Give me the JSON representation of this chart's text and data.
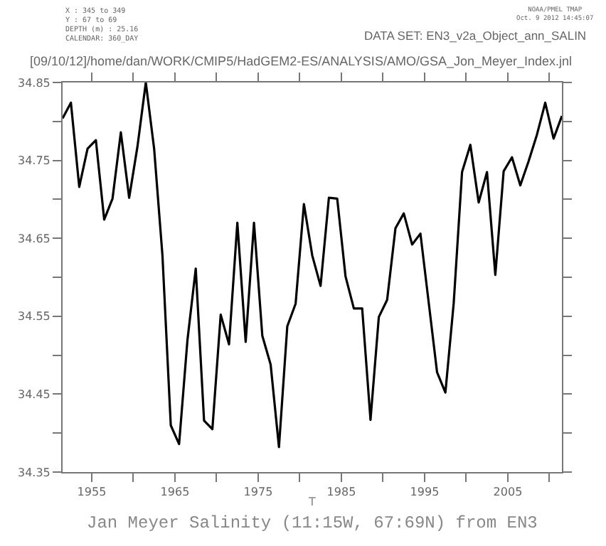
{
  "chart_data": {
    "type": "line",
    "title": "Jan Meyer Salinity (11:15W, 67:69N) from EN3",
    "xlabel": "T",
    "annotations": [
      "X : 345 to 349\nY : 67 to 69\nDEPTH (m) : 25.16\nCALENDAR: 360_DAY",
      "NOAA/PMEL TMAP\nOct. 9 2012 14:45:07",
      "DATA SET: EN3_v2a_Object_ann_SALIN",
      "[09/10/12]/home/dan/WORK/CMIP5/HadGEM2-ES/ANALYSIS/AMO/GSA_Jon_Meyer_Index.jnl"
    ],
    "x": [
      1951.5,
      1952.5,
      1953.5,
      1954.5,
      1955.5,
      1956.5,
      1957.5,
      1958.5,
      1959.5,
      1960.5,
      1961.5,
      1962.5,
      1963.5,
      1964.5,
      1965.5,
      1966.5,
      1967.5,
      1968.5,
      1969.5,
      1970.5,
      1971.5,
      1972.5,
      1973.5,
      1974.5,
      1975.5,
      1976.5,
      1977.5,
      1978.5,
      1979.5,
      1980.5,
      1981.5,
      1982.5,
      1983.5,
      1984.5,
      1985.5,
      1986.5,
      1987.5,
      1988.5,
      1989.5,
      1990.5,
      1991.5,
      1992.5,
      1993.5,
      1994.5,
      1995.5,
      1996.5,
      1997.5,
      1998.5,
      1999.5,
      2000.5,
      2001.5,
      2002.5,
      2003.5,
      2004.5,
      2005.5,
      2006.5,
      2007.5,
      2008.5,
      2009.5,
      2010.5,
      2011.5
    ],
    "series": [
      {
        "color": "#000000",
        "values": [
          34.804,
          34.824,
          34.716,
          34.765,
          34.776,
          34.674,
          34.701,
          34.786,
          34.702,
          34.768,
          34.85,
          34.765,
          34.628,
          34.41,
          34.386,
          34.519,
          34.611,
          34.416,
          34.405,
          34.552,
          34.514,
          34.67,
          34.517,
          34.67,
          34.525,
          34.488,
          34.382,
          34.537,
          34.566,
          34.694,
          34.628,
          34.589,
          34.702,
          34.701,
          34.601,
          34.56,
          34.56,
          34.417,
          34.549,
          34.571,
          34.663,
          34.682,
          34.642,
          34.656,
          34.567,
          34.478,
          34.452,
          34.567,
          34.735,
          34.77,
          34.696,
          34.735,
          34.603,
          34.736,
          34.754,
          34.718,
          34.749,
          34.783,
          34.824,
          34.778,
          34.807
        ]
      }
    ],
    "xlim": [
      1951.5,
      2011.5
    ],
    "xticks": [
      1955,
      {
        "value": 1960,
        "label": null
      },
      1965,
      {
        "value": 1970,
        "label": null
      },
      1975,
      {
        "value": 1980,
        "label": null
      },
      1985,
      {
        "value": 1990,
        "label": null
      },
      1995,
      {
        "value": 2000,
        "label": null
      },
      2005,
      {
        "value": 2010,
        "label": null
      }
    ],
    "ylim": [
      34.35,
      34.85
    ],
    "yticks": [
      34.35,
      {
        "value": 34.4,
        "label": null
      },
      34.45,
      {
        "value": 34.5,
        "label": null
      },
      34.55,
      {
        "value": 34.6,
        "label": null
      },
      34.65,
      {
        "value": 34.7,
        "label": null
      },
      34.75,
      {
        "value": 34.8,
        "label": null
      },
      34.85
    ],
    "marker": "none",
    "line_style": "solid"
  }
}
